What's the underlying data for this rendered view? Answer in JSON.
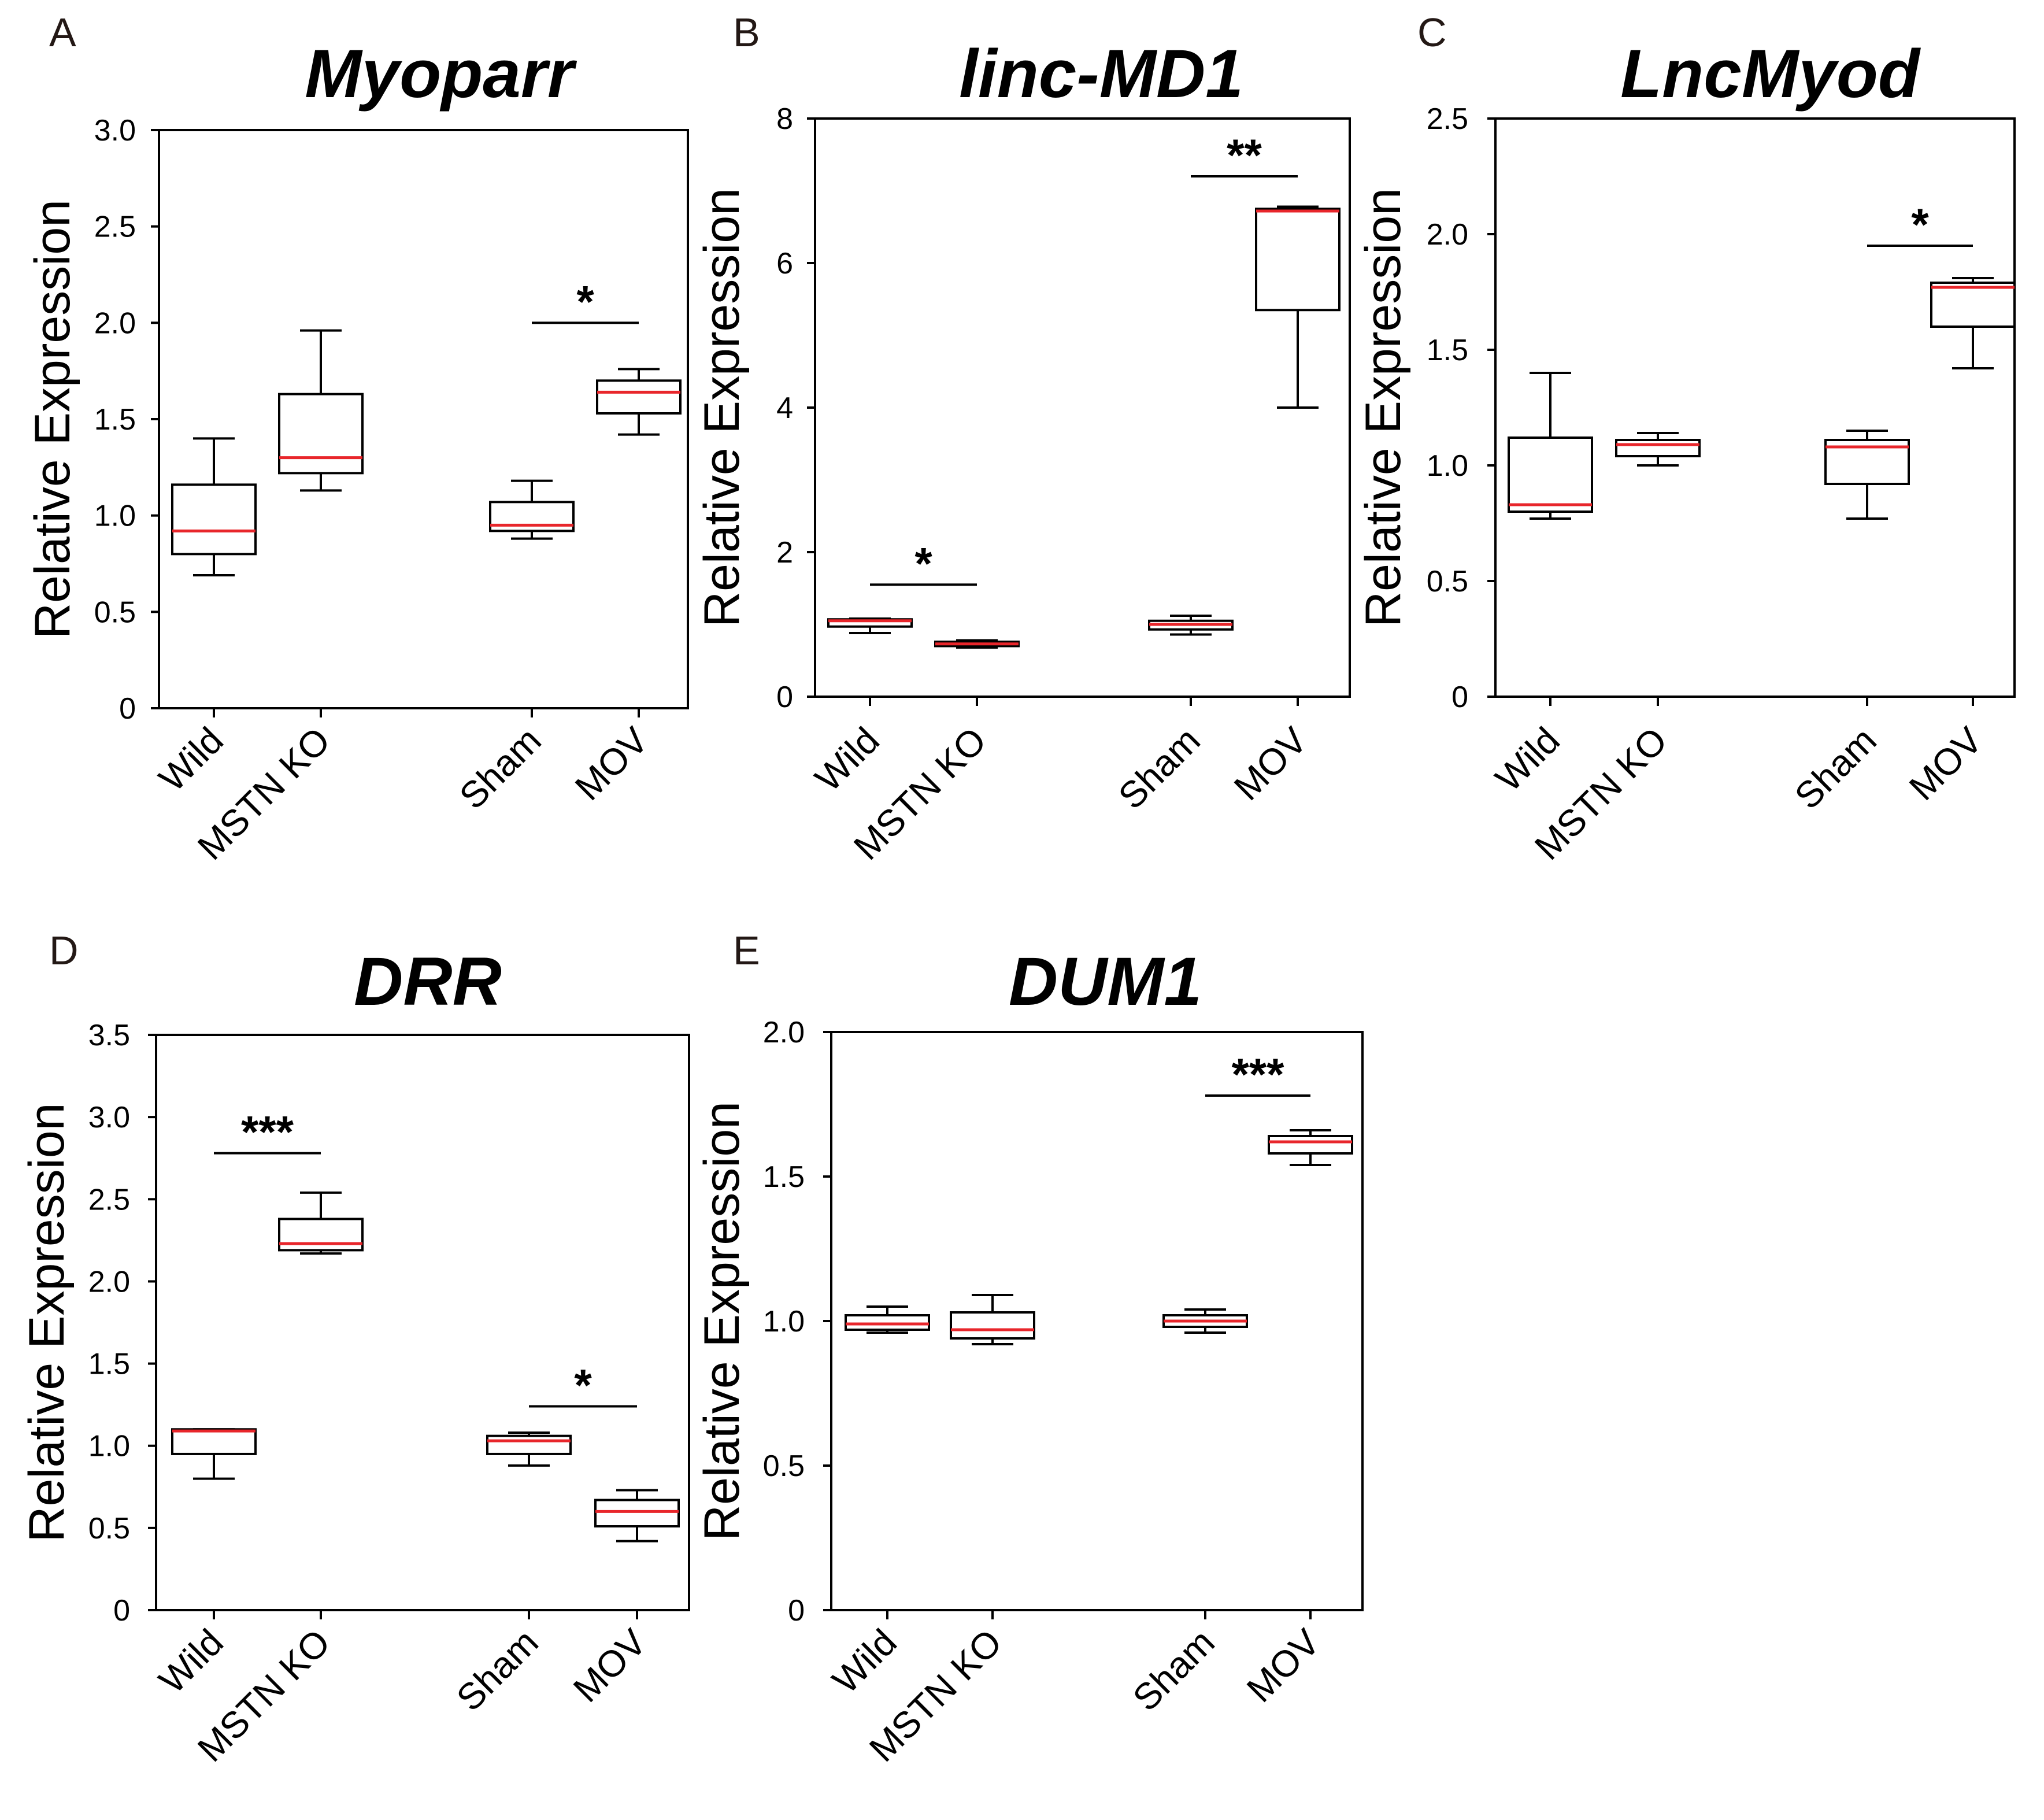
{
  "colors": {
    "median": "#e8262b",
    "axis": "#000000",
    "panel_label": "#231815"
  },
  "chart_data": [
    {
      "panel": "A",
      "type": "box",
      "title": "Myoparr",
      "ylabel": "Relative Expression",
      "ylim": [
        0,
        3.0
      ],
      "yticks": [
        "0",
        "0.5",
        "1.0",
        "1.5",
        "2.0",
        "2.5",
        "3.0"
      ],
      "categories": [
        "Wild",
        "MSTN KO",
        "Sham",
        "MOV"
      ],
      "boxes": [
        {
          "min": 0.69,
          "q1": 0.8,
          "median": 0.92,
          "q3": 1.16,
          "max": 1.4
        },
        {
          "min": 1.13,
          "q1": 1.22,
          "median": 1.3,
          "q3": 1.63,
          "max": 1.96
        },
        {
          "min": 0.88,
          "q1": 0.92,
          "median": 0.95,
          "q3": 1.07,
          "max": 1.18
        },
        {
          "min": 1.42,
          "q1": 1.53,
          "median": 1.64,
          "q3": 1.7,
          "max": 1.76
        }
      ],
      "significance": [
        {
          "from": 2,
          "to": 3,
          "y": 2.0,
          "label": "*"
        }
      ]
    },
    {
      "panel": "B",
      "type": "box",
      "title": "linc-MD1",
      "ylabel": "Relative Expression",
      "ylim": [
        0,
        8
      ],
      "yticks": [
        "0",
        "2",
        "4",
        "6",
        "8"
      ],
      "categories": [
        "Wild",
        "MSTN KO",
        "Sham",
        "MOV"
      ],
      "boxes": [
        {
          "min": 0.88,
          "q1": 0.97,
          "median": 1.05,
          "q3": 1.07,
          "max": 1.08
        },
        {
          "min": 0.68,
          "q1": 0.7,
          "median": 0.73,
          "q3": 0.76,
          "max": 0.78
        },
        {
          "min": 0.86,
          "q1": 0.93,
          "median": 1.0,
          "q3": 1.05,
          "max": 1.12
        },
        {
          "min": 4.0,
          "q1": 5.35,
          "median": 6.72,
          "q3": 6.75,
          "max": 6.78
        }
      ],
      "significance": [
        {
          "from": 0,
          "to": 1,
          "y": 1.55,
          "label": "*"
        },
        {
          "from": 2,
          "to": 3,
          "y": 7.2,
          "label": "**"
        }
      ]
    },
    {
      "panel": "C",
      "type": "box",
      "title": "LncMyod",
      "ylabel": "Relative Expression",
      "ylim": [
        0,
        2.5
      ],
      "yticks": [
        "0",
        "0.5",
        "1.0",
        "1.5",
        "2.0",
        "2.5"
      ],
      "categories": [
        "Wild",
        "MSTN KO",
        "Sham",
        "MOV"
      ],
      "boxes": [
        {
          "min": 0.77,
          "q1": 0.8,
          "median": 0.83,
          "q3": 1.12,
          "max": 1.4
        },
        {
          "min": 1.0,
          "q1": 1.04,
          "median": 1.09,
          "q3": 1.11,
          "max": 1.14
        },
        {
          "min": 0.77,
          "q1": 0.92,
          "median": 1.08,
          "q3": 1.11,
          "max": 1.15
        },
        {
          "min": 1.42,
          "q1": 1.6,
          "median": 1.77,
          "q3": 1.79,
          "max": 1.81
        }
      ],
      "significance": [
        {
          "from": 2,
          "to": 3,
          "y": 1.95,
          "label": "*"
        }
      ]
    },
    {
      "panel": "D",
      "type": "box",
      "title": "DRR",
      "ylabel": "Relative Expression",
      "ylim": [
        0,
        3.5
      ],
      "yticks": [
        "0",
        "0.5",
        "1.0",
        "1.5",
        "2.0",
        "2.5",
        "3.0",
        "3.5"
      ],
      "categories": [
        "Wild",
        "MSTN KO",
        "Sham",
        "MOV"
      ],
      "boxes": [
        {
          "min": 0.8,
          "q1": 0.95,
          "median": 1.09,
          "q3": 1.1,
          "max": 1.1
        },
        {
          "min": 2.17,
          "q1": 2.19,
          "median": 2.23,
          "q3": 2.38,
          "max": 2.54
        },
        {
          "min": 0.88,
          "q1": 0.95,
          "median": 1.03,
          "q3": 1.06,
          "max": 1.08
        },
        {
          "min": 0.42,
          "q1": 0.51,
          "median": 0.6,
          "q3": 0.67,
          "max": 0.73
        }
      ],
      "significance": [
        {
          "from": 0,
          "to": 1,
          "y": 2.78,
          "label": "***"
        },
        {
          "from": 2,
          "to": 3,
          "y": 1.24,
          "label": "*"
        }
      ]
    },
    {
      "panel": "E",
      "type": "box",
      "title": "DUM1",
      "ylabel": "Relative Expression",
      "ylim": [
        0,
        2.0
      ],
      "yticks": [
        "0",
        "0.5",
        "1.0",
        "1.5",
        "2.0"
      ],
      "categories": [
        "Wild",
        "MSTN KO",
        "Sham",
        "MOV"
      ],
      "boxes": [
        {
          "min": 0.96,
          "q1": 0.97,
          "median": 0.99,
          "q3": 1.02,
          "max": 1.05
        },
        {
          "min": 0.92,
          "q1": 0.94,
          "median": 0.97,
          "q3": 1.03,
          "max": 1.09
        },
        {
          "min": 0.96,
          "q1": 0.98,
          "median": 1.0,
          "q3": 1.02,
          "max": 1.04
        },
        {
          "min": 1.54,
          "q1": 1.58,
          "median": 1.62,
          "q3": 1.64,
          "max": 1.66
        }
      ],
      "significance": [
        {
          "from": 2,
          "to": 3,
          "y": 1.78,
          "label": "***"
        }
      ]
    }
  ]
}
